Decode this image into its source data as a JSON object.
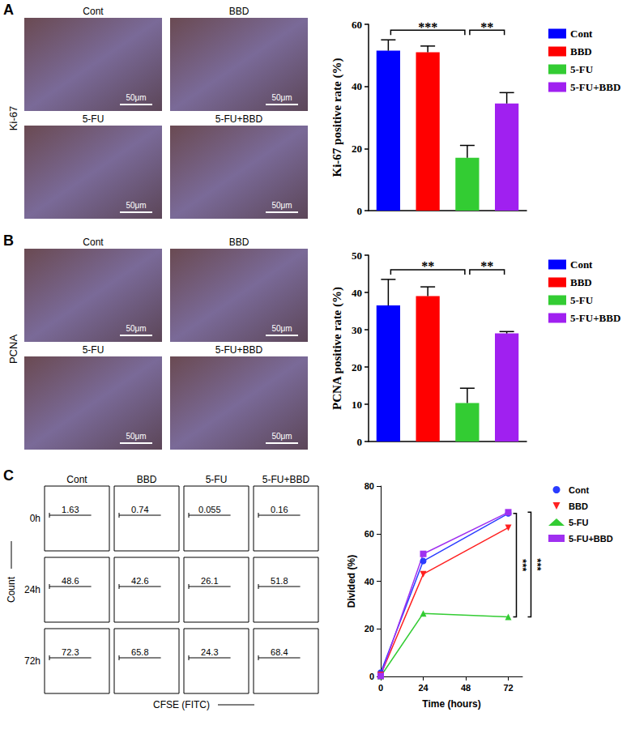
{
  "chart_data": [
    {
      "panel": "A",
      "type": "bar",
      "y_label": "Ki-67 positive rate (%)",
      "categories": [
        "Cont",
        "BBD",
        "5-FU",
        "5-FU+BBD"
      ],
      "values": [
        51.5,
        51,
        17,
        34.5
      ],
      "errors": [
        3.5,
        2,
        4,
        3.5
      ],
      "colors": [
        "#0000ff",
        "#ff0000",
        "#33cc33",
        "#a020f0"
      ],
      "ylim": [
        0,
        60
      ],
      "yticks": [
        0,
        20,
        40,
        60
      ],
      "grid": false,
      "legend": "right",
      "tick_labels": "y",
      "annotations": [
        {
          "from": "Cont",
          "to": "5-FU",
          "text": "***"
        },
        {
          "from": "5-FU",
          "to": "5-FU+BBD",
          "text": "**"
        }
      ]
    },
    {
      "panel": "B",
      "type": "bar",
      "y_label": "PCNA positive rate (%)",
      "categories": [
        "Cont",
        "BBD",
        "5-FU",
        "5-FU+BBD"
      ],
      "values": [
        36.5,
        39,
        10.3,
        29
      ],
      "errors": [
        7,
        2.5,
        4,
        0.5
      ],
      "colors": [
        "#0000ff",
        "#ff0000",
        "#33cc33",
        "#a020f0"
      ],
      "ylim": [
        0,
        50
      ],
      "yticks": [
        0,
        10,
        20,
        30,
        40,
        50
      ],
      "grid": false,
      "legend": "right",
      "tick_labels": "y",
      "annotations": [
        {
          "from": "Cont",
          "to": "5-FU",
          "text": "**"
        },
        {
          "from": "5-FU",
          "to": "5-FU+BBD",
          "text": "**"
        }
      ]
    },
    {
      "panel": "C",
      "type": "line",
      "x_label": "Time (hours)",
      "y_label": "Divided (%)",
      "x": [
        0,
        24,
        72
      ],
      "series": [
        {
          "name": "Cont",
          "color": "#2a3cff",
          "marker": "circle",
          "values": [
            1.6,
            48.5,
            68.5
          ]
        },
        {
          "name": "BBD",
          "color": "#ff2020",
          "marker": "triangle-down",
          "values": [
            0.7,
            43,
            62.5
          ]
        },
        {
          "name": "5-FU",
          "color": "#33cc33",
          "marker": "triangle",
          "values": [
            0.1,
            26.5,
            25
          ]
        },
        {
          "name": "5-FU+BBD",
          "color": "#a030f0",
          "marker": "square",
          "values": [
            0.2,
            51.5,
            69
          ]
        }
      ],
      "xlim": [
        0,
        80
      ],
      "xticks": [
        0,
        24,
        48,
        72
      ],
      "ylim": [
        0,
        80
      ],
      "yticks": [
        0,
        20,
        40,
        60,
        80
      ],
      "grid": false,
      "legend": "right",
      "annotations": [
        {
          "from": "Cont",
          "to": "5-FU",
          "text": "***"
        },
        {
          "from": "5-FU+BBD",
          "to": "5-FU",
          "text": "***"
        }
      ]
    }
  ],
  "micrographs": [
    {
      "panel": "A",
      "label": "Ki-67",
      "titles": [
        "Cont",
        "BBD",
        "5-FU",
        "5-FU+BBD"
      ],
      "scale_bar": "50μm"
    },
    {
      "panel": "B",
      "label": "PCNA",
      "titles": [
        "Cont",
        "BBD",
        "5-FU",
        "5-FU+BBD"
      ],
      "scale_bar": "50μm"
    }
  ],
  "flow": {
    "panel": "C",
    "y_label": "Count",
    "x_label": "CFSE (FITC)",
    "columns": [
      "Cont",
      "BBD",
      "5-FU",
      "5-FU+BBD"
    ],
    "rows": [
      "0h",
      "24h",
      "72h"
    ],
    "values": [
      [
        1.63,
        0.74,
        0.055,
        0.16
      ],
      [
        48.6,
        42.6,
        26.1,
        51.8
      ],
      [
        72.3,
        65.8,
        24.3,
        68.4
      ]
    ]
  }
}
